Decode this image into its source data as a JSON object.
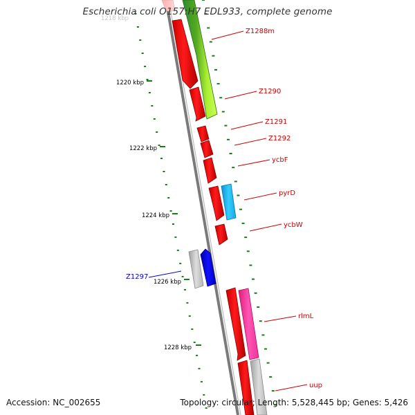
{
  "header": {
    "title": "Escherichia coli O157:H7 EDL933, complete genome"
  },
  "footer": {
    "accession": "Accession: NC_002655",
    "summary": "Topology: circular; Length: 5,528,445 bp; Genes: 5,426"
  },
  "axis": {
    "tick_labels": [
      "1220 kbp",
      "1222 kbp",
      "1224 kbp",
      "1226 kbp",
      "1228 kbp"
    ],
    "partial_top_label": "1218 kbp"
  },
  "colors": {
    "backbone": "#7a7a7a",
    "tick": "#1a7a1a",
    "label_red": "#cc0000",
    "label_blue": "#0000cc",
    "red_gene": "#ff0000",
    "green_gene": "#88dd22",
    "cyan_gene": "#22bbee",
    "blue_gene": "#0000ee",
    "gray_gene": "#bbbbbb",
    "pink_gene": "#ff44aa"
  },
  "gene_labels": [
    {
      "name": "Z1288m",
      "color": "red"
    },
    {
      "name": "Z1290",
      "color": "red"
    },
    {
      "name": "Z1291",
      "color": "red"
    },
    {
      "name": "Z1292",
      "color": "red"
    },
    {
      "name": "ycbF",
      "color": "red"
    },
    {
      "name": "pyrD",
      "color": "red"
    },
    {
      "name": "ycbW",
      "color": "red"
    },
    {
      "name": "Z1297",
      "color": "blue"
    },
    {
      "name": "rlmL",
      "color": "red"
    },
    {
      "name": "uup",
      "color": "red"
    }
  ]
}
